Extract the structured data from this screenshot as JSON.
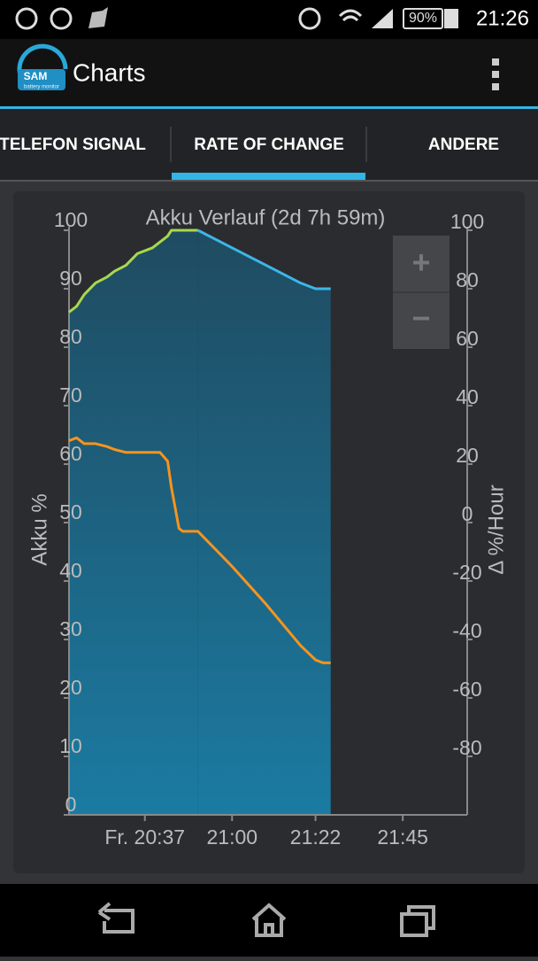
{
  "status_bar": {
    "battery": "90%",
    "time": "21:26"
  },
  "app_bar": {
    "logo": "SAM",
    "logo_subtitle": "battery monitor",
    "title": "Charts"
  },
  "tabs": [
    "TELEFON SIGNAL",
    "RATE OF CHANGE",
    "ANDERE"
  ],
  "zoom": {
    "in": "+",
    "out": "−"
  },
  "chart_data": {
    "type": "line",
    "title": "Akku Verlauf (2d 7h 59m)",
    "y_label": "Akku %",
    "y2_label": "Δ %/Hour",
    "x": [
      "20:17",
      "20:19",
      "20:21",
      "20:24",
      "20:27",
      "20:29",
      "20:32",
      "20:35",
      "20:39",
      "20:41",
      "20:43",
      "20:44",
      "20:46",
      "20:47",
      "20:51",
      "21:00",
      "21:09",
      "21:18",
      "21:22",
      "21:24",
      "21:26"
    ],
    "xlim": [
      "20:17",
      "22:02"
    ],
    "xticks": [
      {
        "value": "20:37",
        "label": "Fr. 20:37"
      },
      "21:00",
      "21:22",
      "21:45"
    ],
    "ylim": [
      0,
      100
    ],
    "yticks": [
      0,
      10,
      20,
      30,
      40,
      50,
      60,
      70,
      80,
      90,
      100
    ],
    "y2lim": [
      -100,
      100
    ],
    "y2ticks": [
      -80,
      -60,
      -40,
      -20,
      0,
      20,
      40,
      60,
      80,
      100
    ],
    "area": true,
    "area_color": "#1c6f93",
    "series": [
      {
        "color": "#a8d84c",
        "values": [
          86,
          87,
          89,
          91,
          92,
          93,
          94,
          96,
          97,
          98,
          99,
          100,
          100,
          100,
          100,
          null,
          null,
          null,
          null,
          null,
          null
        ]
      },
      {
        "color": "#3cb6e8",
        "values": [
          null,
          null,
          null,
          null,
          null,
          null,
          null,
          null,
          null,
          null,
          null,
          null,
          null,
          null,
          100,
          97,
          94,
          91,
          90,
          90,
          90
        ]
      },
      {
        "color": "#f7941d",
        "axis": "y2",
        "values": [
          28,
          29,
          27,
          27,
          26,
          25,
          24,
          24,
          24,
          24,
          21,
          12,
          -2,
          -3,
          -3,
          -15,
          -28,
          -42,
          -47,
          -48,
          -48
        ]
      }
    ]
  }
}
